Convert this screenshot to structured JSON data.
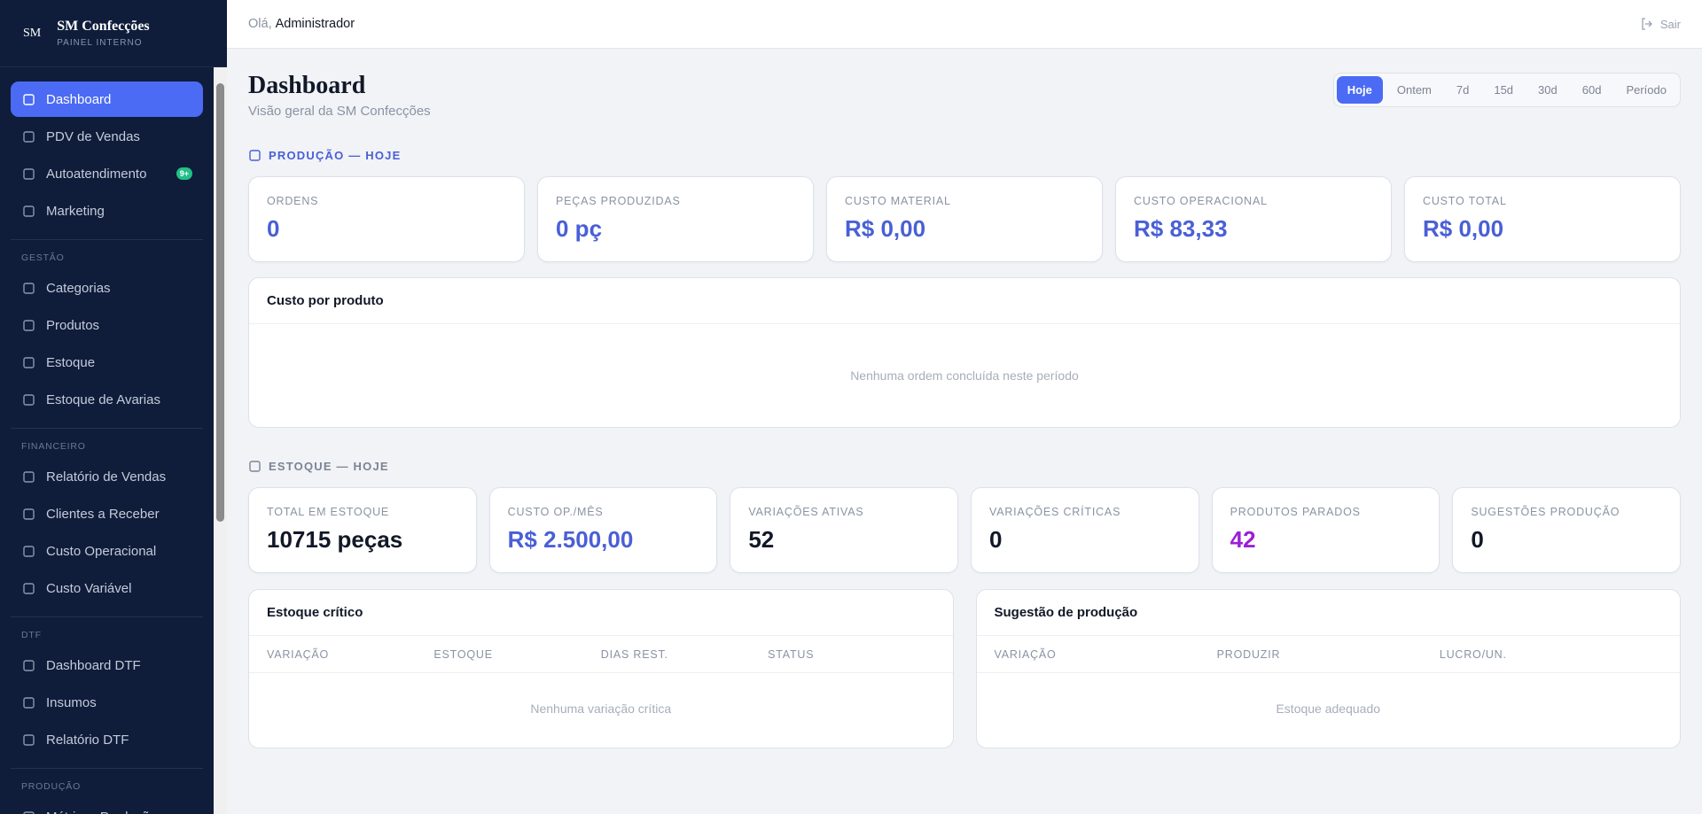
{
  "sidebar": {
    "logo": "SM",
    "brand": "SM Confecções",
    "brand_subtitle": "PAINEL INTERNO",
    "items": [
      {
        "label": "Dashboard",
        "active": true
      },
      {
        "label": "PDV de Vendas"
      },
      {
        "label": "Autoatendimento",
        "badge": "9+"
      },
      {
        "label": "Marketing"
      }
    ],
    "sections": [
      {
        "title": "GESTÃO",
        "items": [
          {
            "label": "Categorias"
          },
          {
            "label": "Produtos"
          },
          {
            "label": "Estoque"
          },
          {
            "label": "Estoque de Avarias"
          }
        ]
      },
      {
        "title": "FINANCEIRO",
        "items": [
          {
            "label": "Relatório de Vendas"
          },
          {
            "label": "Clientes a Receber"
          },
          {
            "label": "Custo Operacional"
          },
          {
            "label": "Custo Variável"
          }
        ]
      },
      {
        "title": "DTF",
        "items": [
          {
            "label": "Dashboard DTF"
          },
          {
            "label": "Insumos"
          },
          {
            "label": "Relatório DTF"
          }
        ]
      },
      {
        "title": "PRODUÇÃO",
        "items": [
          {
            "label": "Métricas Produção x"
          }
        ]
      }
    ]
  },
  "header": {
    "greeting": "Olá,",
    "user": "Administrador",
    "logout": "Sair"
  },
  "page": {
    "title": "Dashboard",
    "subtitle": "Visão geral da SM Confecções",
    "periods": [
      {
        "label": "Hoje",
        "active": true
      },
      {
        "label": "Ontem"
      },
      {
        "label": "7d"
      },
      {
        "label": "15d"
      },
      {
        "label": "30d"
      },
      {
        "label": "60d"
      },
      {
        "label": "Período"
      }
    ]
  },
  "production": {
    "title": "PRODUÇÃO — HOJE",
    "color": "#4a5fd6",
    "stats": [
      {
        "label": "ORDENS",
        "value": "0",
        "color": "#4a5fd6"
      },
      {
        "label": "PEÇAS PRODUZIDAS",
        "value": "0 pç",
        "color": "#4a5fd6"
      },
      {
        "label": "CUSTO MATERIAL",
        "value": "R$ 0,00",
        "color": "#4a5fd6"
      },
      {
        "label": "CUSTO OPERACIONAL",
        "value": "R$ 83,33",
        "color": "#4a5fd6"
      },
      {
        "label": "CUSTO TOTAL",
        "value": "R$ 0,00",
        "color": "#4a5fd6"
      }
    ],
    "panel": {
      "title": "Custo por produto",
      "empty": "Nenhuma ordem concluída neste período"
    }
  },
  "stock": {
    "title": "ESTOQUE — HOJE",
    "color": "#7b8494",
    "stats": [
      {
        "label": "TOTAL EM ESTOQUE",
        "value": "10715 peças",
        "color": "#111827"
      },
      {
        "label": "CUSTO OP./MÊS",
        "value": "R$ 2.500,00",
        "color": "#4a5fd6"
      },
      {
        "label": "VARIAÇÕES ATIVAS",
        "value": "52",
        "color": "#111827"
      },
      {
        "label": "VARIAÇÕES CRÍTICAS",
        "value": "0",
        "color": "#111827"
      },
      {
        "label": "PRODUTOS PARADOS",
        "value": "42",
        "color": "#9b1fd8"
      },
      {
        "label": "SUGESTÕES PRODUÇÃO",
        "value": "0",
        "color": "#111827"
      }
    ],
    "tables": [
      {
        "title": "Estoque crítico",
        "columns": [
          "VARIAÇÃO",
          "ESTOQUE",
          "DIAS REST.",
          "STATUS"
        ],
        "empty": "Nenhuma variação crítica"
      },
      {
        "title": "Sugestão de produção",
        "columns": [
          "VARIAÇÃO",
          "PRODUZIR",
          "LUCRO/UN."
        ],
        "empty": "Estoque adequado"
      }
    ]
  }
}
